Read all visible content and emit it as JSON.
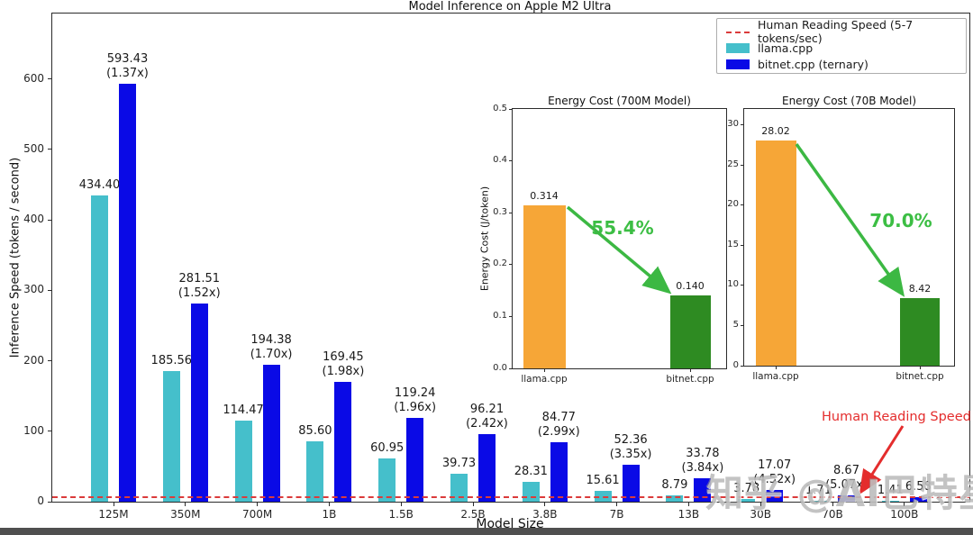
{
  "figure": {
    "watermark": "知乎 @AI巴特星球"
  },
  "legend": {
    "items": [
      {
        "label": "Human Reading Speed (5-7 tokens/sec)",
        "type": "dashed-line",
        "color": "#db3b3b"
      },
      {
        "label": "llama.cpp",
        "type": "patch",
        "color": "#45bfcb"
      },
      {
        "label": "bitnet.cpp (ternary)",
        "type": "patch",
        "color": "#0a0ae6"
      }
    ]
  },
  "annotation": {
    "text": "Human Reading Speed",
    "color": "#e42d2d"
  },
  "chart_data": [
    {
      "type": "bar",
      "id": "main",
      "title": "Model Inference on Apple M2 Ultra",
      "xlabel": "Model Size",
      "ylabel": "Inference Speed (tokens / second)",
      "ylim": [
        0,
        693
      ],
      "yticks": [
        0,
        100,
        200,
        300,
        400,
        500,
        600
      ],
      "grid": false,
      "legend_position": "upper right",
      "categories": [
        "125M",
        "350M",
        "700M",
        "1B",
        "1.5B",
        "2.5B",
        "3.8B",
        "7B",
        "13B",
        "30B",
        "70B",
        "100B"
      ],
      "series": [
        {
          "name": "llama.cpp",
          "color": "#45bfcb",
          "values": [
            434.4,
            185.56,
            114.47,
            85.6,
            60.95,
            39.73,
            28.31,
            15.61,
            8.79,
            3.78,
            1.71,
            1.41
          ],
          "labels": [
            "434.40",
            "185.56",
            "114.47",
            "85.60",
            "60.95",
            "39.73",
            "28.31",
            "15.61",
            "8.79",
            "3.78",
            "1.71",
            "1.41"
          ]
        },
        {
          "name": "bitnet.cpp (ternary)",
          "color": "#0a0ae6",
          "values": [
            593.43,
            281.51,
            194.38,
            169.45,
            119.24,
            96.21,
            84.77,
            52.36,
            33.78,
            17.07,
            8.67,
            6.58
          ],
          "labels": [
            "593.43",
            "281.51",
            "194.38",
            "169.45",
            "119.24",
            "96.21",
            "84.77",
            "52.36",
            "33.78",
            "17.07",
            "8.67",
            "6.58"
          ],
          "multipliers": [
            "(1.37x)",
            "(1.52x)",
            "(1.70x)",
            "(1.98x)",
            "(1.96x)",
            "(2.42x)",
            "(2.99x)",
            "(3.35x)",
            "(3.84x)",
            "(4.52x)",
            "(5.07x)",
            ""
          ]
        }
      ],
      "reference_line": {
        "value": 6,
        "label": "Human Reading Speed (5-7 tokens/sec)",
        "color": "#db3b3b",
        "style": "dashed"
      }
    },
    {
      "type": "bar",
      "id": "energy-700m",
      "title": "Energy Cost (700M Model)",
      "ylabel": "Energy Cost (J/token)",
      "ylim": [
        0,
        0.5
      ],
      "ytick_labels": [
        "0.0",
        "0.1",
        "0.2",
        "0.3",
        "0.4",
        "0.5"
      ],
      "ytick_values": [
        0,
        0.1,
        0.2,
        0.3,
        0.4,
        0.5
      ],
      "categories": [
        "llama.cpp",
        "bitnet.cpp"
      ],
      "values": [
        0.314,
        0.14
      ],
      "labels": [
        "0.314",
        "0.140"
      ],
      "colors": [
        "#f6a637",
        "#2e8b22"
      ],
      "reduction": "55.4%",
      "reduction_color": "#3cbe44"
    },
    {
      "type": "bar",
      "id": "energy-70b",
      "title": "Energy Cost (70B Model)",
      "ylabel": "",
      "ylim": [
        0,
        32
      ],
      "ytick_labels": [
        "0",
        "5",
        "10",
        "15",
        "20",
        "25",
        "30"
      ],
      "ytick_values": [
        0,
        5,
        10,
        15,
        20,
        25,
        30
      ],
      "categories": [
        "llama.cpp",
        "bitnet.cpp"
      ],
      "values": [
        28.02,
        8.42
      ],
      "labels": [
        "28.02",
        "8.42"
      ],
      "colors": [
        "#f6a637",
        "#2e8b22"
      ],
      "reduction": "70.0%",
      "reduction_color": "#3cbe44"
    }
  ]
}
